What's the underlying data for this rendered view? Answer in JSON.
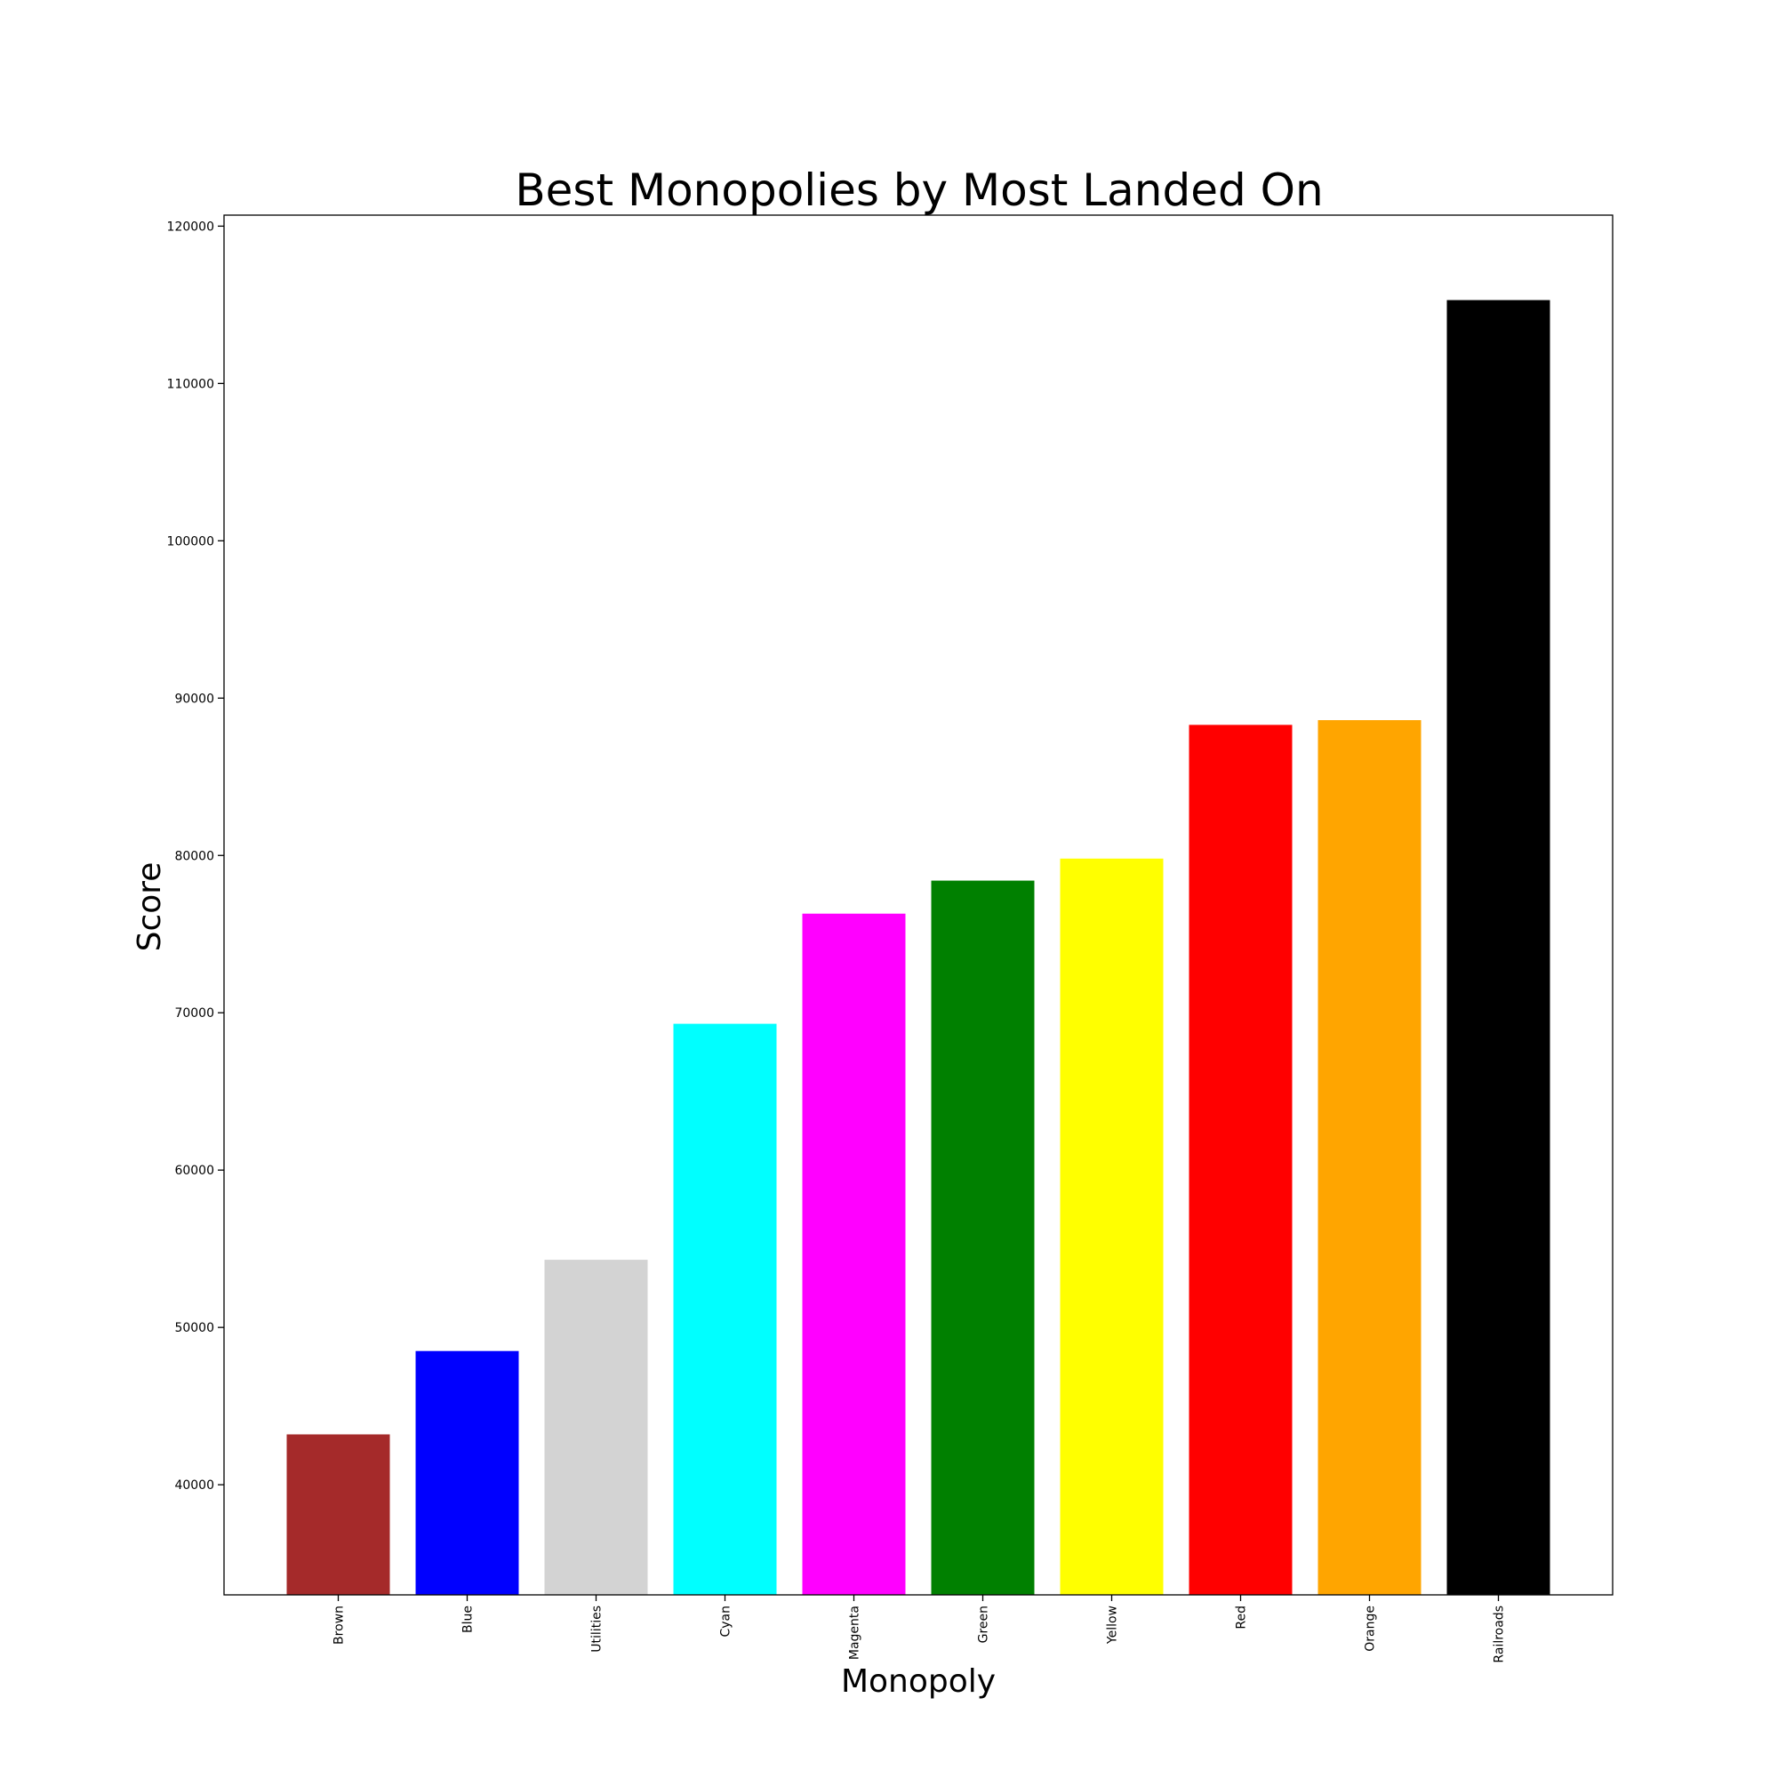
{
  "chart_data": {
    "type": "bar",
    "title": "Best Monopolies by Most Landed On",
    "xlabel": "Monopoly",
    "ylabel": "Score",
    "categories": [
      "Brown",
      "Blue",
      "Utilities",
      "Cyan",
      "Magenta",
      "Green",
      "Yellow",
      "Red",
      "Orange",
      "Railroads"
    ],
    "values": [
      43200,
      48500,
      54300,
      69300,
      76300,
      78400,
      79800,
      88300,
      88600,
      115300
    ],
    "colors": [
      "#a52a2a",
      "#0000ff",
      "#d3d3d3",
      "#00ffff",
      "#ff00ff",
      "#008000",
      "#ffff00",
      "#ff0000",
      "#ffa500",
      "#000000"
    ],
    "ylim": [
      33000,
      120700
    ],
    "yticks": [
      40000,
      50000,
      60000,
      70000,
      80000,
      90000,
      100000,
      110000,
      120000
    ],
    "ytick_labels": [
      "40000",
      "50000",
      "60000",
      "70000",
      "80000",
      "90000",
      "100000",
      "110000",
      "120000"
    ],
    "grid": false,
    "legend": "none"
  }
}
